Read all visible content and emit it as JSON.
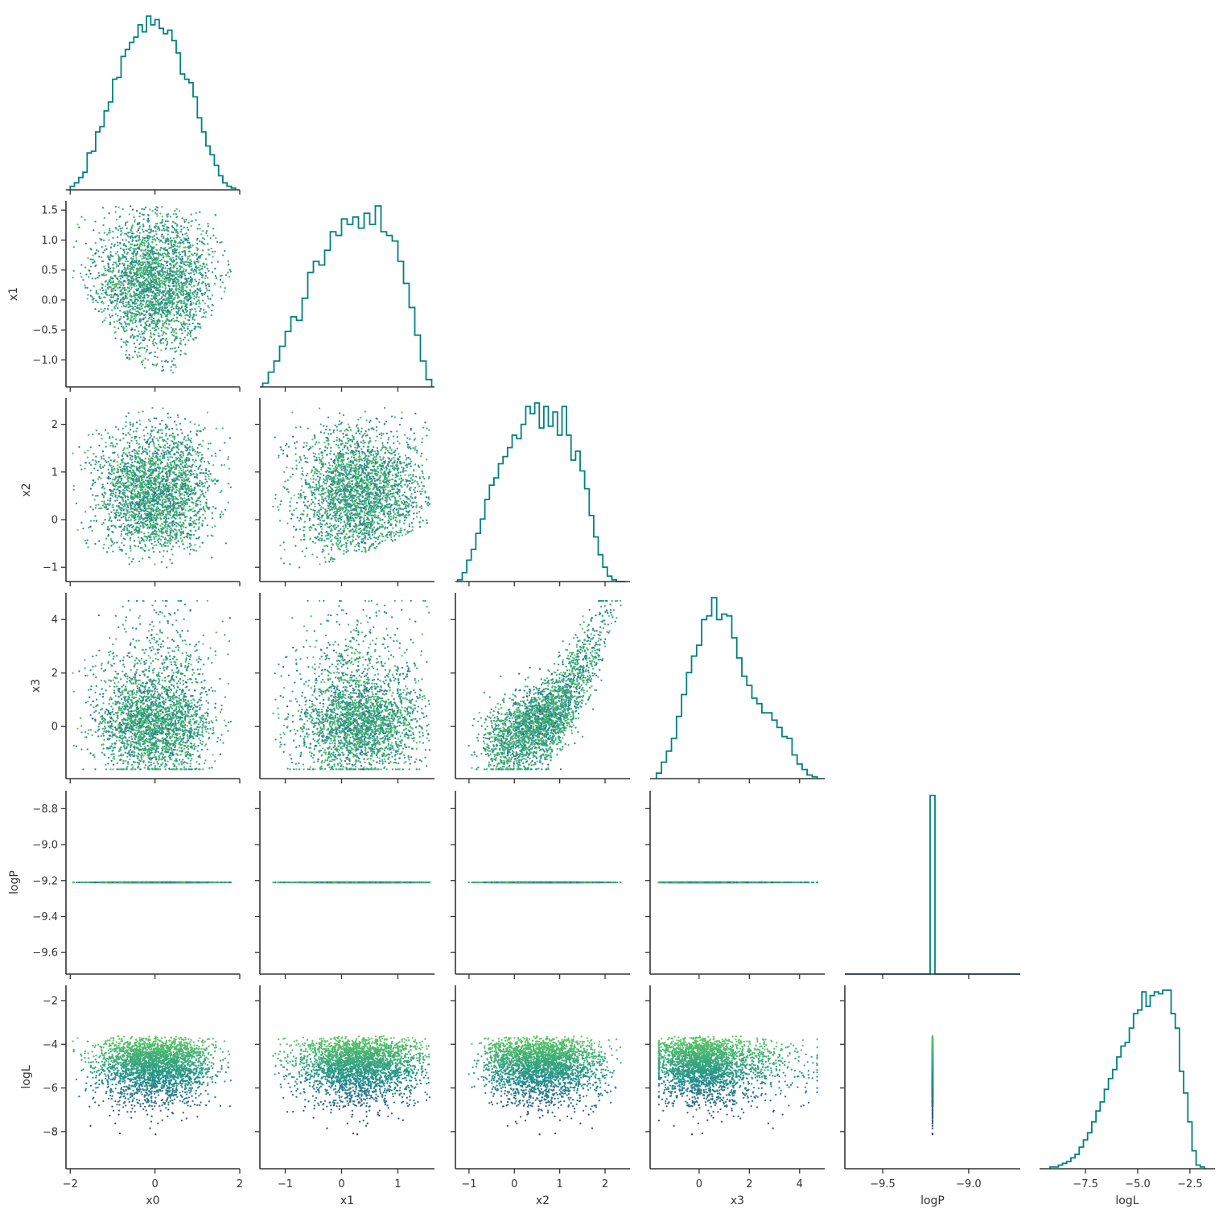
{
  "chart_data": {
    "type": "scatter",
    "title": "",
    "variables": [
      "x0",
      "x1",
      "x2",
      "x3",
      "logP",
      "logL"
    ],
    "colormap": [
      "#440154",
      "#3b528b",
      "#21918c",
      "#5ec962",
      "#fde725"
    ],
    "color_by": "logL",
    "histogram_color": "#008080",
    "layout": "corner",
    "grid": false,
    "axis_ranges": {
      "x0": [
        -2.1,
        2.0
      ],
      "x1": [
        -1.45,
        1.65
      ],
      "x2": [
        -1.3,
        2.55
      ],
      "x3": [
        -1.95,
        5.0
      ],
      "logP": [
        -9.72,
        -8.7
      ],
      "logL": [
        -9.7,
        -1.3
      ]
    },
    "ticks": {
      "x0": {
        "values": [
          -2,
          0,
          2
        ],
        "labels": [
          "−2",
          "0",
          "2"
        ]
      },
      "x1": {
        "values": [
          -1,
          0,
          1
        ],
        "labels": [
          "−1",
          "0",
          "1"
        ]
      },
      "x2": {
        "values": [
          -1,
          0,
          1,
          2
        ],
        "labels": [
          "−1",
          "0",
          "1",
          "2"
        ]
      },
      "x3": {
        "values": [
          0,
          2,
          4
        ],
        "labels": [
          "0",
          "2",
          "4"
        ]
      },
      "logP": {
        "values": [
          -9.5,
          -9.0
        ],
        "labels": [
          "−9.5",
          "−9.0"
        ]
      },
      "logL": {
        "values": [
          -7.5,
          -5.0,
          -2.5
        ],
        "labels": [
          "−7.5",
          "−5.0",
          "−2.5"
        ]
      }
    },
    "y_ticks": {
      "x1": {
        "values": [
          -1.0,
          -0.5,
          0.0,
          0.5,
          1.0,
          1.5
        ],
        "labels": [
          "−1.0",
          "−0.5",
          "0.0",
          "0.5",
          "1.0",
          "1.5"
        ]
      },
      "x2": {
        "values": [
          -1,
          0,
          1,
          2
        ],
        "labels": [
          "−1",
          "0",
          "1",
          "2"
        ]
      },
      "x3": {
        "values": [
          0,
          2,
          4
        ],
        "labels": [
          "0",
          "2",
          "4"
        ]
      },
      "logP": {
        "values": [
          -9.6,
          -9.4,
          -9.2,
          -9.0,
          -8.8
        ],
        "labels": [
          "−9.6",
          "−9.4",
          "−9.2",
          "−9.0",
          "−8.8"
        ]
      },
      "logL": {
        "values": [
          -8,
          -6,
          -4,
          -2
        ],
        "labels": [
          "−8",
          "−6",
          "−4",
          "−2"
        ]
      }
    },
    "logP_constant": -9.21,
    "histograms": {
      "x0": {
        "x": [
          -1.95,
          -1.85,
          -1.75,
          -1.65,
          -1.55,
          -1.45,
          -1.35,
          -1.25,
          -1.15,
          -1.05,
          -0.95,
          -0.85,
          -0.75,
          -0.65,
          -0.55,
          -0.45,
          -0.35,
          -0.25,
          -0.15,
          -0.05,
          0.05,
          0.15,
          0.25,
          0.35,
          0.45,
          0.55,
          0.65,
          0.75,
          0.85,
          0.95,
          1.05,
          1.15,
          1.25,
          1.35,
          1.45,
          1.55,
          1.65,
          1.75,
          1.85
        ],
        "counts": [
          2,
          4,
          7,
          10,
          21,
          22,
          33,
          36,
          45,
          50,
          63,
          64,
          76,
          80,
          84,
          87,
          94,
          90,
          99,
          94,
          97,
          92,
          89,
          91,
          85,
          78,
          66,
          63,
          61,
          53,
          41,
          33,
          25,
          20,
          14,
          8,
          4,
          2,
          1
        ]
      },
      "x1": {
        "x": [
          -1.35,
          -1.25,
          -1.15,
          -1.05,
          -0.95,
          -0.85,
          -0.75,
          -0.65,
          -0.55,
          -0.45,
          -0.35,
          -0.25,
          -0.15,
          -0.05,
          0.05,
          0.15,
          0.25,
          0.35,
          0.45,
          0.55,
          0.65,
          0.75,
          0.85,
          0.95,
          1.05,
          1.15,
          1.25,
          1.35,
          1.45,
          1.55
        ],
        "counts": [
          2,
          8,
          14,
          22,
          30,
          38,
          36,
          48,
          62,
          68,
          66,
          74,
          84,
          82,
          91,
          88,
          92,
          86,
          94,
          88,
          98,
          84,
          82,
          79,
          68,
          56,
          43,
          28,
          14,
          4
        ]
      },
      "x2": {
        "x": [
          -1.2,
          -1.1,
          -1.0,
          -0.9,
          -0.8,
          -0.7,
          -0.6,
          -0.5,
          -0.4,
          -0.3,
          -0.2,
          -0.1,
          0.0,
          0.1,
          0.2,
          0.3,
          0.4,
          0.5,
          0.6,
          0.7,
          0.8,
          0.9,
          1.0,
          1.1,
          1.2,
          1.3,
          1.4,
          1.5,
          1.6,
          1.7,
          1.8,
          1.9,
          2.0,
          2.1,
          2.2,
          2.3,
          2.4
        ],
        "counts": [
          1,
          5,
          12,
          18,
          27,
          35,
          46,
          54,
          58,
          66,
          70,
          75,
          82,
          80,
          88,
          98,
          94,
          100,
          86,
          98,
          87,
          95,
          82,
          98,
          82,
          68,
          73,
          62,
          52,
          37,
          25,
          15,
          8,
          3,
          1,
          0,
          0
        ]
      },
      "x3": {
        "x": [
          -1.6,
          -1.4,
          -1.2,
          -1.0,
          -0.8,
          -0.6,
          -0.4,
          -0.2,
          0.0,
          0.2,
          0.4,
          0.6,
          0.8,
          1.0,
          1.2,
          1.4,
          1.6,
          1.8,
          2.0,
          2.2,
          2.4,
          2.6,
          2.8,
          3.0,
          3.2,
          3.4,
          3.6,
          3.8,
          4.0,
          4.2,
          4.4,
          4.6
        ],
        "counts": [
          3,
          9,
          15,
          22,
          34,
          46,
          58,
          67,
          73,
          87,
          89,
          99,
          87,
          90,
          89,
          77,
          66,
          56,
          51,
          44,
          41,
          36,
          36,
          32,
          28,
          23,
          22,
          13,
          8,
          5,
          2,
          1
        ]
      },
      "logP": {
        "x": [
          -9.21
        ],
        "counts": [
          100
        ]
      },
      "logL": {
        "x": [
          -9.1,
          -8.9,
          -8.7,
          -8.5,
          -8.3,
          -8.1,
          -7.9,
          -7.7,
          -7.5,
          -7.3,
          -7.1,
          -6.9,
          -6.7,
          -6.5,
          -6.3,
          -6.1,
          -5.9,
          -5.7,
          -5.5,
          -5.3,
          -5.1,
          -4.9,
          -4.7,
          -4.5,
          -4.3,
          -4.1,
          -3.9,
          -3.7,
          -3.5,
          -3.3,
          -3.1,
          -2.9,
          -2.7,
          -2.5,
          -2.3,
          -2.1,
          -1.9
        ],
        "counts": [
          1,
          1,
          2,
          3,
          4,
          6,
          8,
          12,
          16,
          20,
          26,
          32,
          37,
          44,
          50,
          55,
          62,
          68,
          70,
          78,
          86,
          88,
          98,
          90,
          96,
          98,
          97,
          99,
          99,
          86,
          78,
          54,
          42,
          26,
          10,
          2,
          1
        ]
      }
    }
  }
}
